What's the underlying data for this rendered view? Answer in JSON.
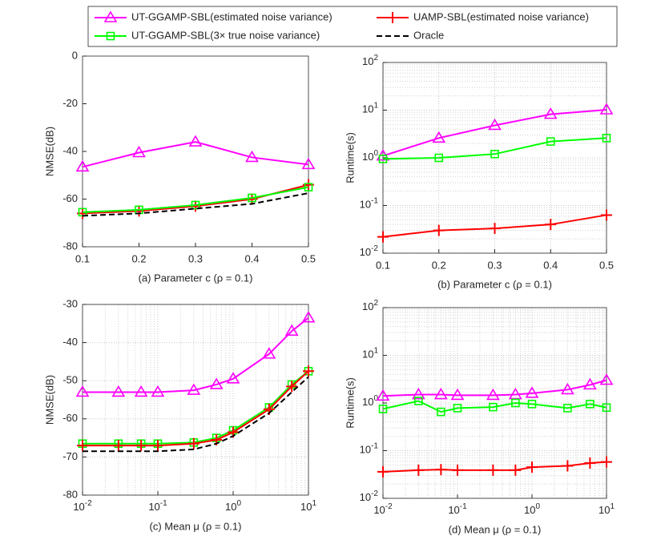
{
  "chart_data": [
    {
      "type": "line",
      "caption": "(a) Parameter c (ρ = 0.1)",
      "ylabel": "NMSE(dB)",
      "x": [
        0.1,
        0.2,
        0.3,
        0.4,
        0.5
      ],
      "xlim": [
        0.1,
        0.5
      ],
      "xticks": [
        0.1,
        0.2,
        0.3,
        0.4,
        0.5
      ],
      "ylim": [
        -80,
        0
      ],
      "yticks": [
        -80,
        -60,
        -40,
        -20,
        0
      ],
      "grid": false,
      "series": [
        {
          "name": "UT-GGAMP-SBL(estimated noise variance)",
          "color": "#ff00ff",
          "marker": "triangle",
          "values": [
            -46.5,
            -40.5,
            -36,
            -42.5,
            -45.5
          ]
        },
        {
          "name": "UAMP-SBL(estimated noise variance)",
          "color": "#ff0000",
          "marker": "plus",
          "values": [
            -66,
            -65,
            -63,
            -60,
            -54
          ]
        },
        {
          "name": "UT-GGAMP-SBL(3× true noise variance)",
          "color": "#00ff00",
          "marker": "square",
          "values": [
            -65.5,
            -64.5,
            -62.5,
            -59.5,
            -55
          ]
        },
        {
          "name": "Oracle",
          "color": "#000000",
          "marker": "none",
          "dash": true,
          "values": [
            -67,
            -66,
            -64,
            -62,
            -57.5
          ]
        }
      ]
    },
    {
      "type": "line",
      "caption": "(b) Parameter c (ρ = 0.1)",
      "ylabel": "Runtime(s)",
      "x": [
        0.1,
        0.2,
        0.3,
        0.4,
        0.5
      ],
      "xlim": [
        0.1,
        0.5
      ],
      "xticks": [
        0.1,
        0.2,
        0.3,
        0.4,
        0.5
      ],
      "ylim": [
        0.01,
        100
      ],
      "ylog": true,
      "yticks": [
        {
          "value": 0.01,
          "label": "10^-2"
        },
        {
          "value": 0.1,
          "label": "10^-1"
        },
        {
          "value": 1,
          "label": "10^0"
        },
        {
          "value": 10,
          "label": "10^1"
        },
        {
          "value": 100,
          "label": "10^2"
        }
      ],
      "grid": true,
      "series": [
        {
          "name": "UT-GGAMP-SBL(estimated noise variance)",
          "color": "#ff00ff",
          "marker": "triangle",
          "values": [
            1.1,
            2.6,
            4.8,
            8.2,
            10.2
          ]
        },
        {
          "name": "UAMP-SBL(estimated noise variance)",
          "color": "#ff0000",
          "marker": "plus",
          "values": [
            0.022,
            0.03,
            0.033,
            0.04,
            0.063
          ]
        },
        {
          "name": "UT-GGAMP-SBL(3× true noise variance)",
          "color": "#00ff00",
          "marker": "square",
          "values": [
            0.95,
            1.0,
            1.2,
            2.2,
            2.6
          ]
        }
      ]
    },
    {
      "type": "line",
      "caption": "(c) Mean μ (ρ = 0.1)",
      "ylabel": "NMSE(dB)",
      "x": [
        0.01,
        0.03,
        0.06,
        0.1,
        0.3,
        0.6,
        1,
        3,
        6,
        10
      ],
      "xlim": [
        0.01,
        10
      ],
      "xlog": true,
      "xticks": [
        {
          "value": 0.01,
          "label": "10^-2"
        },
        {
          "value": 0.1,
          "label": "10^-1"
        },
        {
          "value": 1,
          "label": "10^0"
        },
        {
          "value": 10,
          "label": "10^1"
        }
      ],
      "ylim": [
        -80,
        -30
      ],
      "yticks": [
        -80,
        -70,
        -60,
        -50,
        -40,
        -30
      ],
      "grid": true,
      "series": [
        {
          "name": "UT-GGAMP-SBL(estimated noise variance)",
          "color": "#ff00ff",
          "marker": "triangle",
          "values": [
            -53,
            -53,
            -53,
            -53,
            -52.5,
            -51,
            -49.5,
            -43,
            -37,
            -33.5
          ]
        },
        {
          "name": "UT-GGAMP-SBL(3× true noise variance)",
          "color": "#00ff00",
          "marker": "square",
          "values": [
            -66.5,
            -66.5,
            -66.5,
            -66.5,
            -66.2,
            -65,
            -63,
            -57,
            -51,
            -47.5
          ]
        },
        {
          "name": "UAMP-SBL(estimated noise variance)",
          "color": "#ff0000",
          "marker": "plus",
          "values": [
            -67,
            -67,
            -67,
            -67,
            -66.5,
            -65.5,
            -63.5,
            -57.5,
            -51.5,
            -47.5
          ]
        },
        {
          "name": "Oracle",
          "color": "#000000",
          "marker": "none",
          "dash": true,
          "values": [
            -68.5,
            -68.5,
            -68.5,
            -68.5,
            -68,
            -66.5,
            -64.5,
            -58.5,
            -53,
            -49
          ]
        }
      ]
    },
    {
      "type": "line",
      "caption": "(d) Mean μ (ρ = 0.1)",
      "ylabel": "Runtime(s)",
      "x": [
        0.01,
        0.03,
        0.06,
        0.1,
        0.3,
        0.6,
        1,
        3,
        6,
        10
      ],
      "xlim": [
        0.01,
        10
      ],
      "xlog": true,
      "xticks": [
        {
          "value": 0.01,
          "label": "10^-2"
        },
        {
          "value": 0.1,
          "label": "10^-1"
        },
        {
          "value": 1,
          "label": "10^0"
        },
        {
          "value": 10,
          "label": "10^1"
        }
      ],
      "ylim": [
        0.01,
        100
      ],
      "ylog": true,
      "yticks": [
        {
          "value": 0.01,
          "label": "10^-2"
        },
        {
          "value": 0.1,
          "label": "10^-1"
        },
        {
          "value": 1,
          "label": "10^0"
        },
        {
          "value": 10,
          "label": "10^1"
        },
        {
          "value": 100,
          "label": "10^2"
        }
      ],
      "grid": true,
      "series": [
        {
          "name": "UT-GGAMP-SBL(estimated noise variance)",
          "color": "#ff00ff",
          "marker": "triangle",
          "values": [
            1.4,
            1.5,
            1.5,
            1.45,
            1.45,
            1.5,
            1.6,
            1.9,
            2.4,
            3.0
          ]
        },
        {
          "name": "UT-GGAMP-SBL(3× true noise variance)",
          "color": "#00ff00",
          "marker": "square",
          "values": [
            0.75,
            1.1,
            0.65,
            0.78,
            0.82,
            1.0,
            0.95,
            0.78,
            0.95,
            0.8
          ]
        },
        {
          "name": "UAMP-SBL(estimated noise variance)",
          "color": "#ff0000",
          "marker": "plus",
          "values": [
            0.036,
            0.039,
            0.04,
            0.039,
            0.039,
            0.039,
            0.045,
            0.048,
            0.055,
            0.058
          ]
        }
      ]
    }
  ]
}
